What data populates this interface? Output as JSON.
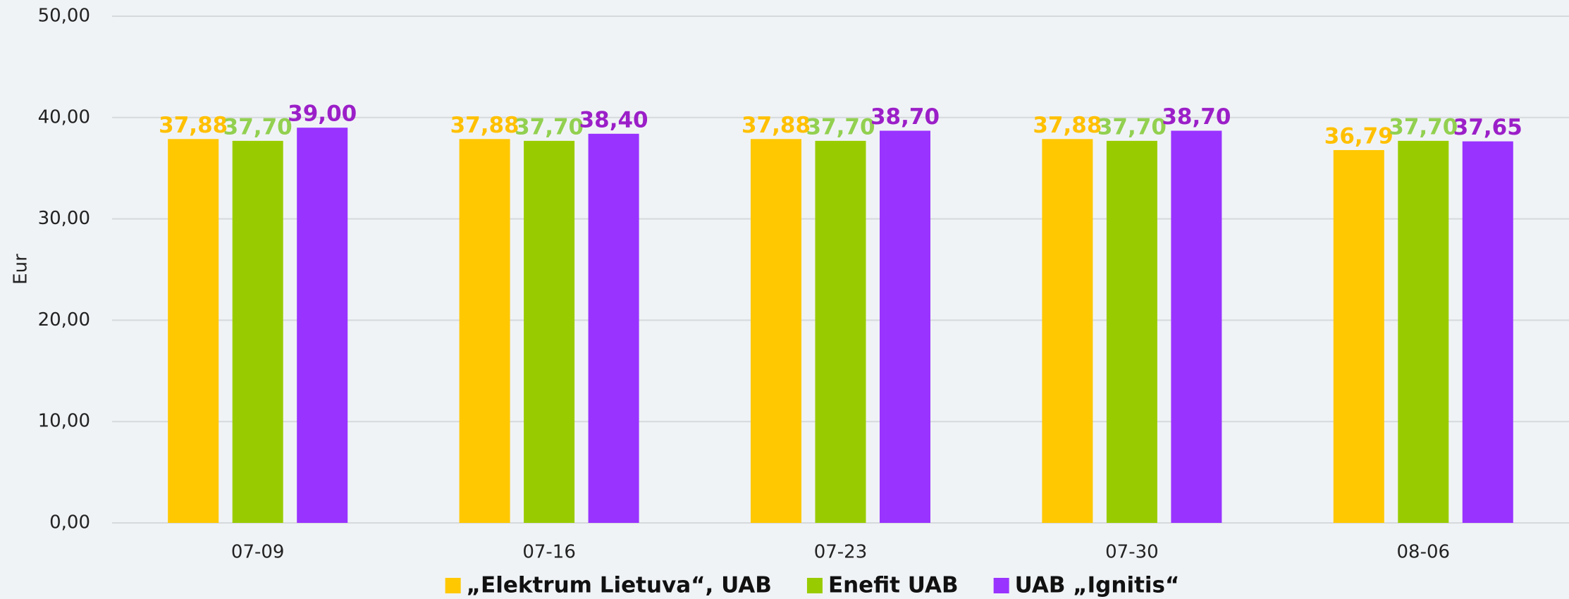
{
  "chart_data": {
    "type": "bar",
    "y_label": "Eur",
    "categories": [
      "07-09",
      "07-16",
      "07-23",
      "07-30",
      "08-06"
    ],
    "series": [
      {
        "name": "„Elektrum Lietuva“, UAB",
        "color": "#FFC800",
        "label_color": "#FFC000",
        "values": [
          37.88,
          37.88,
          37.88,
          37.88,
          36.79
        ],
        "value_labels": [
          "37,88",
          "37,88",
          "37,88",
          "37,88",
          "36,79"
        ]
      },
      {
        "name": "Enefit UAB",
        "color": "#99CC00",
        "label_color": "#92D050",
        "values": [
          37.7,
          37.7,
          37.7,
          37.7,
          37.7
        ],
        "value_labels": [
          "37,70",
          "37,70",
          "37,70",
          "37,70",
          "37,70"
        ]
      },
      {
        "name": "UAB „Ignitis“",
        "color": "#9933FF",
        "label_color": "#9B1FC8",
        "values": [
          39.0,
          38.4,
          38.7,
          38.7,
          37.65
        ],
        "value_labels": [
          "39,00",
          "38,40",
          "38,70",
          "38,70",
          "37,65"
        ]
      }
    ],
    "ylim": [
      0,
      50
    ],
    "yticks": [
      {
        "value": 0,
        "label": "0,00"
      },
      {
        "value": 10,
        "label": "10,00"
      },
      {
        "value": 20,
        "label": "20,00"
      },
      {
        "value": 30,
        "label": "30,00"
      },
      {
        "value": 40,
        "label": "40,00"
      },
      {
        "value": 50,
        "label": "50,00"
      }
    ],
    "grid": true,
    "legend": "bottom"
  }
}
